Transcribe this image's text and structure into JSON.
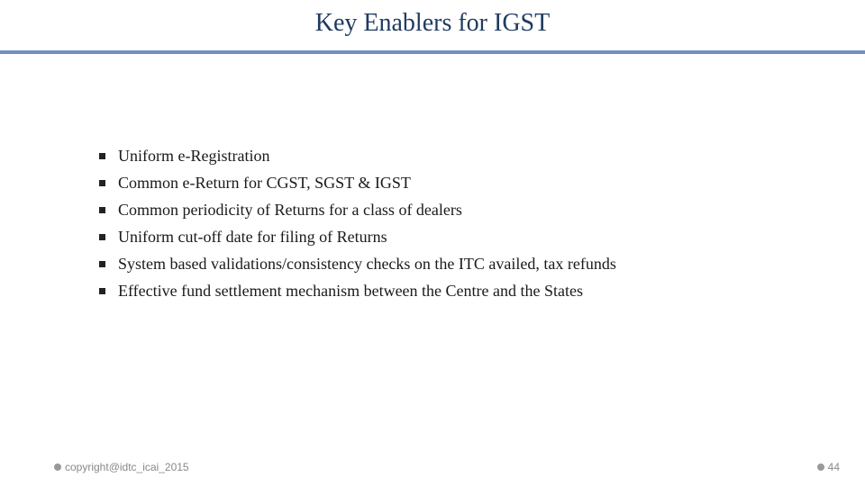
{
  "slide": {
    "title": "Key Enablers for IGST",
    "title_color": "#1f3a5f",
    "title_fontsize": 28,
    "separator_color": "#6f8fc5",
    "background_color": "#ffffff",
    "bullets": [
      "Uniform e-Registration",
      "Common e-Return for CGST, SGST & IGST",
      "Common periodicity of Returns for a class of dealers",
      "Uniform cut-off date for filing of Returns",
      "System based validations/consistency checks on the ITC availed, tax refunds",
      "Effective fund settlement mechanism between the Centre and the States"
    ],
    "bullet_fontsize": 18,
    "bullet_color": "#1a1a1a",
    "bullet_marker_color": "#222222"
  },
  "footer": {
    "copyright": "copyright@idtc_icai_2015",
    "page_number": "44",
    "font_color": "#888888",
    "dot_color": "#999999"
  }
}
